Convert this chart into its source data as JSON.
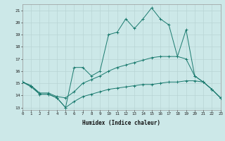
{
  "x": [
    0,
    1,
    2,
    3,
    4,
    5,
    6,
    7,
    8,
    9,
    10,
    11,
    12,
    13,
    14,
    15,
    16,
    17,
    18,
    19,
    20,
    21,
    22,
    23
  ],
  "main_y": [
    15.1,
    14.8,
    14.1,
    14.1,
    13.8,
    13.0,
    16.3,
    16.3,
    15.6,
    16.0,
    19.0,
    19.2,
    20.3,
    19.5,
    20.3,
    21.2,
    20.3,
    19.8,
    17.2,
    19.4,
    15.6,
    15.1,
    14.5,
    13.8
  ],
  "upper_y": [
    15.1,
    14.8,
    14.2,
    14.2,
    13.9,
    13.8,
    14.3,
    15.0,
    15.3,
    15.6,
    16.0,
    16.3,
    16.5,
    16.7,
    16.9,
    17.1,
    17.2,
    17.2,
    17.2,
    17.0,
    15.6,
    15.1,
    14.5,
    13.8
  ],
  "lower_y": [
    15.1,
    14.7,
    14.1,
    14.1,
    13.8,
    13.0,
    13.5,
    13.9,
    14.1,
    14.3,
    14.5,
    14.6,
    14.7,
    14.8,
    14.9,
    14.9,
    15.0,
    15.1,
    15.1,
    15.2,
    15.2,
    15.1,
    14.5,
    13.8
  ],
  "bg_color": "#cce8e8",
  "grid_color": "#b8d4d4",
  "line_color": "#1a7a6e",
  "xlabel": "Humidex (Indice chaleur)",
  "ylim": [
    12.8,
    21.5
  ],
  "xlim": [
    0,
    23
  ],
  "yticks": [
    13,
    14,
    15,
    16,
    17,
    18,
    19,
    20,
    21
  ],
  "xticks": [
    0,
    1,
    2,
    3,
    4,
    5,
    6,
    7,
    8,
    9,
    10,
    11,
    12,
    13,
    14,
    15,
    16,
    17,
    18,
    19,
    20,
    21,
    22,
    23
  ]
}
